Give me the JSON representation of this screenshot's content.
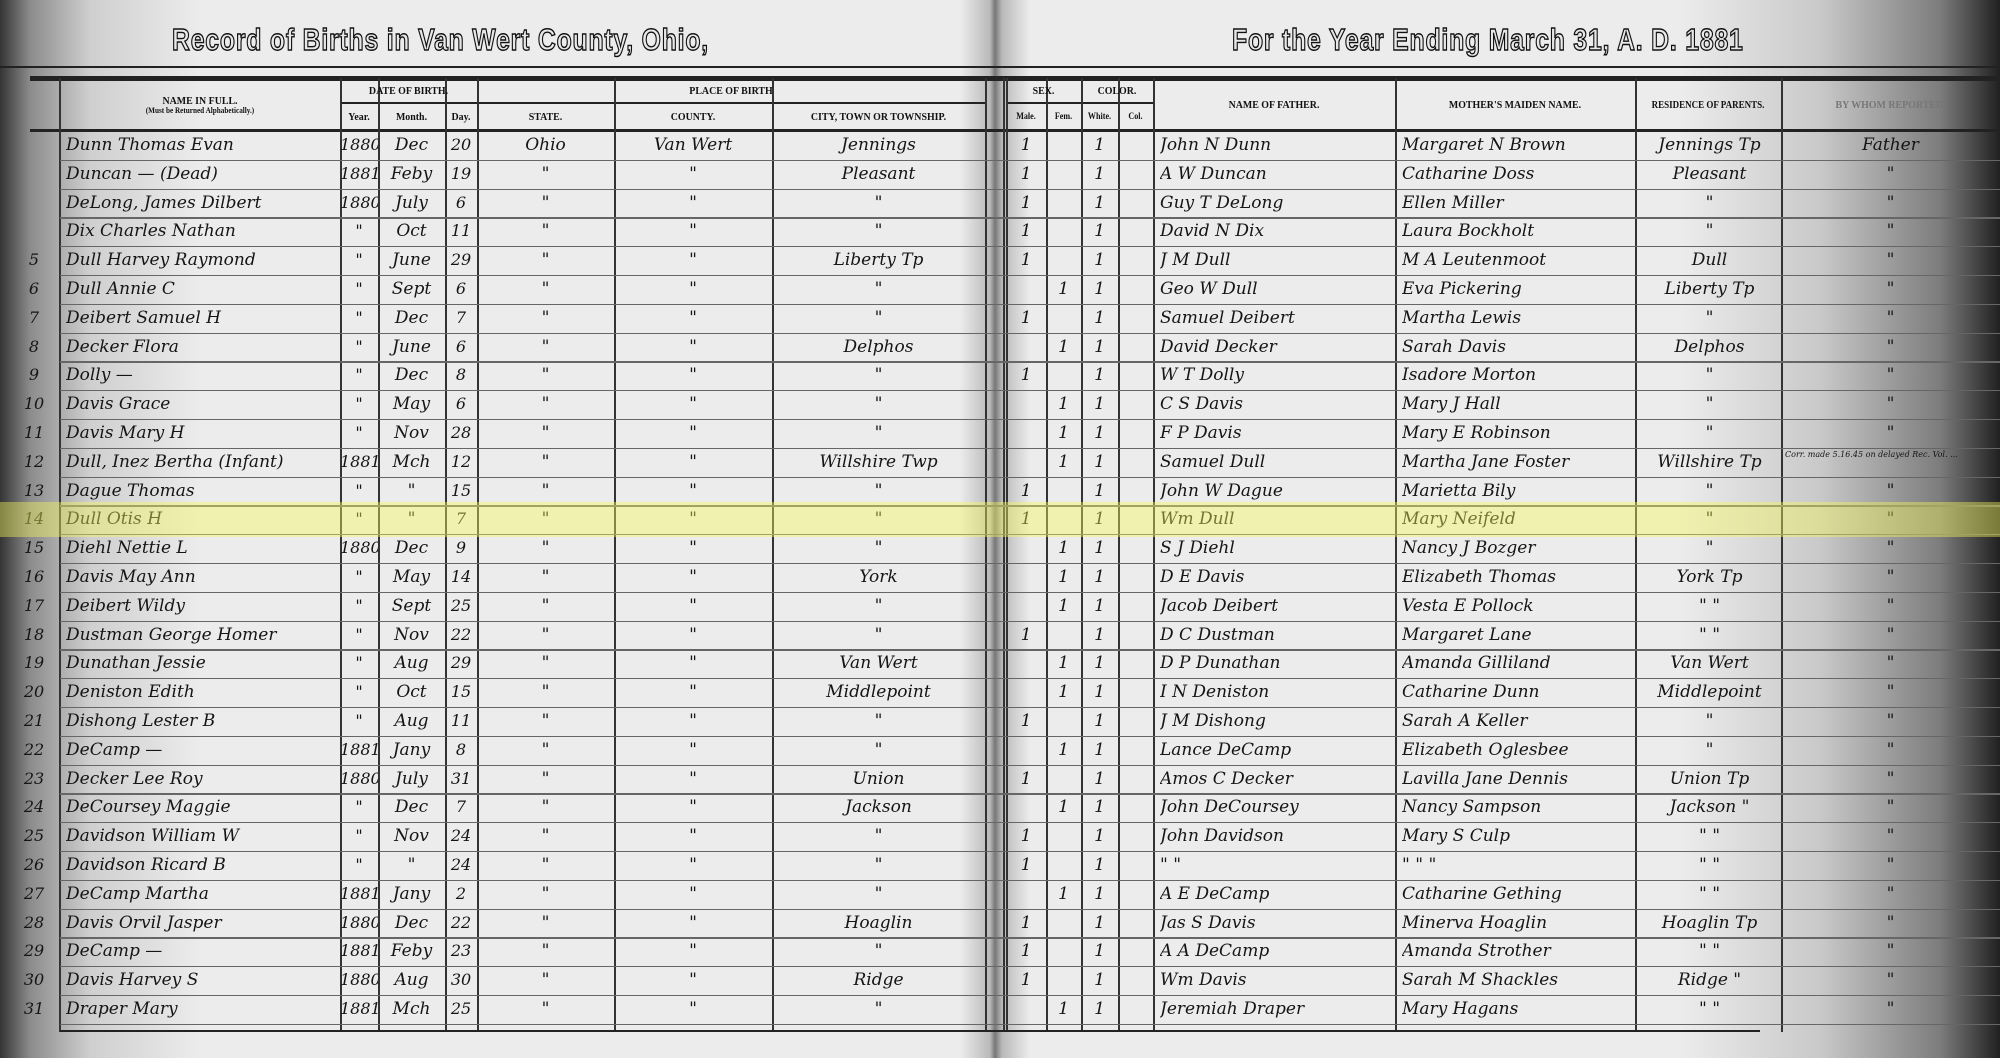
{
  "titles": {
    "left": "Record of Births in Van Wert County, Ohio,",
    "right": "For the Year Ending March 31, A. D. 1881"
  },
  "headers": {
    "name": "NAME IN FULL.",
    "name_note": "(Must be Returned Alphabetically.)",
    "date_of_birth": "DATE OF BIRTH.",
    "year": "Year.",
    "month": "Month.",
    "day": "Day.",
    "place_of_birth": "PLACE OF BIRTH",
    "state": "STATE.",
    "county": "COUNTY.",
    "city": "CITY, TOWN OR TOWNSHIP.",
    "sex": "SEX.",
    "male": "Male.",
    "fem": "Fem.",
    "color": "COLOR.",
    "white": "White.",
    "col": "Col.",
    "father": "NAME OF FATHER.",
    "mother": "MOTHER'S MAIDEN NAME.",
    "residence": "RESIDENCE OF PARENTS.",
    "reported": "BY WHOM REPORTED."
  },
  "highlighted_row": 14,
  "highlight_color": "#f5f55a",
  "rows": [
    {
      "n": "",
      "name": "Dunn Thomas Evan",
      "year": "1880",
      "month": "Dec",
      "day": "20",
      "state": "Ohio",
      "county": "Van Wert",
      "city": "Jennings",
      "male": "1",
      "fem": "",
      "white": "1",
      "col": "",
      "father": "John N Dunn",
      "mother": "Margaret N Brown",
      "residence": "Jennings Tp",
      "reported": "Father",
      "note": ""
    },
    {
      "n": "",
      "name": "Duncan  —  (Dead)",
      "year": "1881",
      "month": "Feby",
      "day": "19",
      "state": "\"",
      "county": "\"",
      "city": "Pleasant",
      "male": "1",
      "fem": "",
      "white": "1",
      "col": "",
      "father": "A W Duncan",
      "mother": "Catharine Doss",
      "residence": "Pleasant",
      "reported": "\"",
      "note": ""
    },
    {
      "n": "",
      "name": "DeLong, James Dilbert",
      "year": "1880",
      "month": "July",
      "day": "6",
      "state": "\"",
      "county": "\"",
      "city": "\"",
      "male": "1",
      "fem": "",
      "white": "1",
      "col": "",
      "father": "Guy T DeLong",
      "mother": "Ellen Miller",
      "residence": "\"",
      "reported": "\"",
      "note": ""
    },
    {
      "n": "",
      "name": "Dix Charles Nathan",
      "year": "\"",
      "month": "Oct",
      "day": "11",
      "state": "\"",
      "county": "\"",
      "city": "\"",
      "male": "1",
      "fem": "",
      "white": "1",
      "col": "",
      "father": "David N Dix",
      "mother": "Laura Bockholt",
      "residence": "\"",
      "reported": "\"",
      "note": ""
    },
    {
      "n": "5",
      "name": "Dull Harvey Raymond",
      "year": "\"",
      "month": "June",
      "day": "29",
      "state": "\"",
      "county": "\"",
      "city": "Liberty Tp",
      "male": "1",
      "fem": "",
      "white": "1",
      "col": "",
      "father": "J M Dull",
      "mother": "M A Leutenmoot",
      "residence": "Dull",
      "reported": "\"",
      "note": ""
    },
    {
      "n": "6",
      "name": "Dull Annie C",
      "year": "\"",
      "month": "Sept",
      "day": "6",
      "state": "\"",
      "county": "\"",
      "city": "\"",
      "male": "",
      "fem": "1",
      "white": "1",
      "col": "",
      "father": "Geo W Dull",
      "mother": "Eva Pickering",
      "residence": "Liberty Tp",
      "reported": "\"",
      "note": ""
    },
    {
      "n": "7",
      "name": "Deibert Samuel H",
      "year": "\"",
      "month": "Dec",
      "day": "7",
      "state": "\"",
      "county": "\"",
      "city": "\"",
      "male": "1",
      "fem": "",
      "white": "1",
      "col": "",
      "father": "Samuel Deibert",
      "mother": "Martha Lewis",
      "residence": "\"",
      "reported": "\"",
      "note": ""
    },
    {
      "n": "8",
      "name": "Decker Flora",
      "year": "\"",
      "month": "June",
      "day": "6",
      "state": "\"",
      "county": "\"",
      "city": "Delphos",
      "male": "",
      "fem": "1",
      "white": "1",
      "col": "",
      "father": "David Decker",
      "mother": "Sarah Davis",
      "residence": "Delphos",
      "reported": "\"",
      "note": ""
    },
    {
      "n": "9",
      "name": "Dolly  —",
      "year": "\"",
      "month": "Dec",
      "day": "8",
      "state": "\"",
      "county": "\"",
      "city": "\"",
      "male": "1",
      "fem": "",
      "white": "1",
      "col": "",
      "father": "W T Dolly",
      "mother": "Isadore Morton",
      "residence": "\"",
      "reported": "\"",
      "note": ""
    },
    {
      "n": "10",
      "name": "Davis Grace",
      "year": "\"",
      "month": "May",
      "day": "6",
      "state": "\"",
      "county": "\"",
      "city": "\"",
      "male": "",
      "fem": "1",
      "white": "1",
      "col": "",
      "father": "C S Davis",
      "mother": "Mary J Hall",
      "residence": "\"",
      "reported": "\"",
      "note": ""
    },
    {
      "n": "11",
      "name": "Davis Mary H",
      "year": "\"",
      "month": "Nov",
      "day": "28",
      "state": "\"",
      "county": "\"",
      "city": "\"",
      "male": "",
      "fem": "1",
      "white": "1",
      "col": "",
      "father": "F P Davis",
      "mother": "Mary E Robinson",
      "residence": "\"",
      "reported": "\"",
      "note": ""
    },
    {
      "n": "12",
      "name": "Dull, Inez Bertha (Infant)",
      "year": "1881",
      "month": "Mch",
      "day": "12",
      "state": "\"",
      "county": "\"",
      "city": "Willshire Twp",
      "male": "",
      "fem": "1",
      "white": "1",
      "col": "",
      "father": "Samuel Dull",
      "mother": "Martha Jane Foster",
      "residence": "Willshire Tp",
      "reported": "",
      "note": "Corr. made 5.16.45 on delayed Rec. Vol. ..."
    },
    {
      "n": "13",
      "name": "Dague Thomas",
      "year": "\"",
      "month": "\"",
      "day": "15",
      "state": "\"",
      "county": "\"",
      "city": "\"",
      "male": "1",
      "fem": "",
      "white": "1",
      "col": "",
      "father": "John W Dague",
      "mother": "Marietta Bily",
      "residence": "\"",
      "reported": "\"",
      "note": ""
    },
    {
      "n": "14",
      "name": "Dull Otis H",
      "year": "\"",
      "month": "\"",
      "day": "7",
      "state": "\"",
      "county": "\"",
      "city": "\"",
      "male": "1",
      "fem": "",
      "white": "1",
      "col": "",
      "father": "Wm Dull",
      "mother": "Mary Neifeld",
      "residence": "\"",
      "reported": "\"",
      "note": ""
    },
    {
      "n": "15",
      "name": "Diehl Nettie L",
      "year": "1880",
      "month": "Dec",
      "day": "9",
      "state": "\"",
      "county": "\"",
      "city": "\"",
      "male": "",
      "fem": "1",
      "white": "1",
      "col": "",
      "father": "S J Diehl",
      "mother": "Nancy J Bozger",
      "residence": "\"",
      "reported": "\"",
      "note": ""
    },
    {
      "n": "16",
      "name": "Davis May Ann",
      "year": "\"",
      "month": "May",
      "day": "14",
      "state": "\"",
      "county": "\"",
      "city": "York",
      "male": "",
      "fem": "1",
      "white": "1",
      "col": "",
      "father": "D E Davis",
      "mother": "Elizabeth Thomas",
      "residence": "York Tp",
      "reported": "\"",
      "note": ""
    },
    {
      "n": "17",
      "name": "Deibert Wildy",
      "year": "\"",
      "month": "Sept",
      "day": "25",
      "state": "\"",
      "county": "\"",
      "city": "\"",
      "male": "",
      "fem": "1",
      "white": "1",
      "col": "",
      "father": "Jacob Deibert",
      "mother": "Vesta E Pollock",
      "residence": "\"  \"",
      "reported": "\"",
      "note": ""
    },
    {
      "n": "18",
      "name": "Dustman George Homer",
      "year": "\"",
      "month": "Nov",
      "day": "22",
      "state": "\"",
      "county": "\"",
      "city": "\"",
      "male": "1",
      "fem": "",
      "white": "1",
      "col": "",
      "father": "D C Dustman",
      "mother": "Margaret Lane",
      "residence": "\"  \"",
      "reported": "\"",
      "note": ""
    },
    {
      "n": "19",
      "name": "Dunathan Jessie",
      "year": "\"",
      "month": "Aug",
      "day": "29",
      "state": "\"",
      "county": "\"",
      "city": "Van Wert",
      "male": "",
      "fem": "1",
      "white": "1",
      "col": "",
      "father": "D P Dunathan",
      "mother": "Amanda Gilliland",
      "residence": "Van Wert",
      "reported": "\"",
      "note": ""
    },
    {
      "n": "20",
      "name": "Deniston Edith",
      "year": "\"",
      "month": "Oct",
      "day": "15",
      "state": "\"",
      "county": "\"",
      "city": "Middlepoint",
      "male": "",
      "fem": "1",
      "white": "1",
      "col": "",
      "father": "I N Deniston",
      "mother": "Catharine Dunn",
      "residence": "Middlepoint",
      "reported": "\"",
      "note": ""
    },
    {
      "n": "21",
      "name": "Dishong Lester B",
      "year": "\"",
      "month": "Aug",
      "day": "11",
      "state": "\"",
      "county": "\"",
      "city": "\"",
      "male": "1",
      "fem": "",
      "white": "1",
      "col": "",
      "father": "J M Dishong",
      "mother": "Sarah A Keller",
      "residence": "\"",
      "reported": "\"",
      "note": ""
    },
    {
      "n": "22",
      "name": "DeCamp  —",
      "year": "1881",
      "month": "Jany",
      "day": "8",
      "state": "\"",
      "county": "\"",
      "city": "\"",
      "male": "",
      "fem": "1",
      "white": "1",
      "col": "",
      "father": "Lance DeCamp",
      "mother": "Elizabeth Oglesbee",
      "residence": "\"",
      "reported": "\"",
      "note": ""
    },
    {
      "n": "23",
      "name": "Decker Lee Roy",
      "year": "1880",
      "month": "July",
      "day": "31",
      "state": "\"",
      "county": "\"",
      "city": "Union",
      "male": "1",
      "fem": "",
      "white": "1",
      "col": "",
      "father": "Amos C Decker",
      "mother": "Lavilla Jane Dennis",
      "residence": "Union Tp",
      "reported": "\"",
      "note": ""
    },
    {
      "n": "24",
      "name": "DeCoursey Maggie",
      "year": "\"",
      "month": "Dec",
      "day": "7",
      "state": "\"",
      "county": "\"",
      "city": "Jackson",
      "male": "",
      "fem": "1",
      "white": "1",
      "col": "",
      "father": "John DeCoursey",
      "mother": "Nancy Sampson",
      "residence": "Jackson \"",
      "reported": "\"",
      "note": ""
    },
    {
      "n": "25",
      "name": "Davidson William W",
      "year": "\"",
      "month": "Nov",
      "day": "24",
      "state": "\"",
      "county": "\"",
      "city": "\"",
      "male": "1",
      "fem": "",
      "white": "1",
      "col": "",
      "father": "John Davidson",
      "mother": "Mary S Culp",
      "residence": "\"  \"",
      "reported": "\"",
      "note": ""
    },
    {
      "n": "26",
      "name": "Davidson Ricard B",
      "year": "\"",
      "month": "\"",
      "day": "24",
      "state": "\"",
      "county": "\"",
      "city": "\"",
      "male": "1",
      "fem": "",
      "white": "1",
      "col": "",
      "father": "\"     \"",
      "mother": "\"   \"   \"",
      "residence": "\"  \"",
      "reported": "\"",
      "note": ""
    },
    {
      "n": "27",
      "name": "DeCamp Martha",
      "year": "1881",
      "month": "Jany",
      "day": "2",
      "state": "\"",
      "county": "\"",
      "city": "\"",
      "male": "",
      "fem": "1",
      "white": "1",
      "col": "",
      "father": "A E DeCamp",
      "mother": "Catharine Gething",
      "residence": "\"  \"",
      "reported": "\"",
      "note": ""
    },
    {
      "n": "28",
      "name": "Davis Orvil Jasper",
      "year": "1880",
      "month": "Dec",
      "day": "22",
      "state": "\"",
      "county": "\"",
      "city": "Hoaglin",
      "male": "1",
      "fem": "",
      "white": "1",
      "col": "",
      "father": "Jas S Davis",
      "mother": "Minerva Hoaglin",
      "residence": "Hoaglin Tp",
      "reported": "\"",
      "note": ""
    },
    {
      "n": "29",
      "name": "DeCamp  —",
      "year": "1881",
      "month": "Feby",
      "day": "23",
      "state": "\"",
      "county": "\"",
      "city": "\"",
      "male": "1",
      "fem": "",
      "white": "1",
      "col": "",
      "father": "A A DeCamp",
      "mother": "Amanda Strother",
      "residence": "\"  \"",
      "reported": "\"",
      "note": ""
    },
    {
      "n": "30",
      "name": "Davis Harvey S",
      "year": "1880",
      "month": "Aug",
      "day": "30",
      "state": "\"",
      "county": "\"",
      "city": "Ridge",
      "male": "1",
      "fem": "",
      "white": "1",
      "col": "",
      "father": "Wm Davis",
      "mother": "Sarah M Shackles",
      "residence": "Ridge \"",
      "reported": "\"",
      "note": ""
    },
    {
      "n": "31",
      "name": "Draper Mary",
      "year": "1881",
      "month": "Mch",
      "day": "25",
      "state": "\"",
      "county": "\"",
      "city": "\"",
      "male": "",
      "fem": "1",
      "white": "1",
      "col": "",
      "father": "Jeremiah Draper",
      "mother": "Mary Hagans",
      "residence": "\"  \"",
      "reported": "\"",
      "note": ""
    }
  ]
}
